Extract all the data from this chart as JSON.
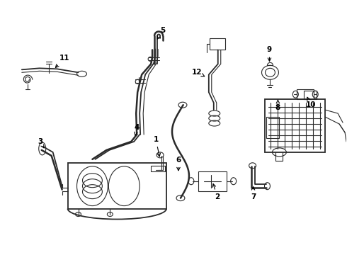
{
  "bg_color": "#ffffff",
  "line_color": "#2a2a2a",
  "label_color": "#000000",
  "figsize": [
    4.9,
    3.6
  ],
  "dpi": 100,
  "lw_main": 1.3,
  "lw_thin": 0.8,
  "lw_thick": 1.8
}
